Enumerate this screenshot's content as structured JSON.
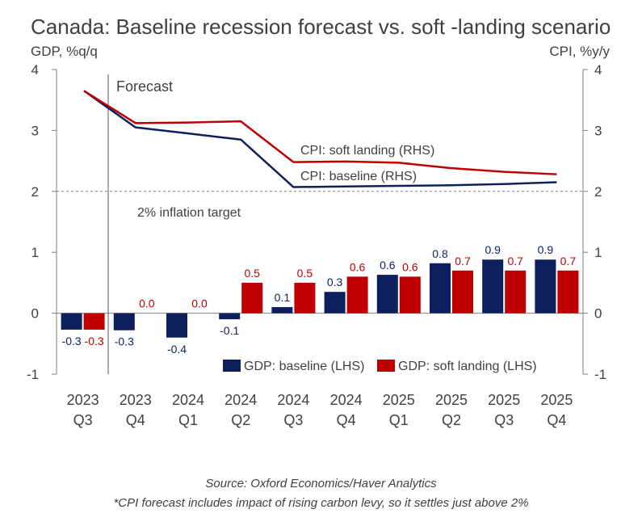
{
  "chart_data": {
    "type": "bar",
    "title": "Canada: Baseline recession forecast vs. soft -landing scenario",
    "ylabel": "GDP, %q/q",
    "y2label": "CPI, %y/y",
    "ylim": [
      -1,
      4
    ],
    "y2lim": [
      -1,
      4
    ],
    "yticks": [
      -1,
      0,
      1,
      2,
      3,
      4
    ],
    "grid": false,
    "categories": [
      {
        "year": "2023",
        "quarter": "Q3"
      },
      {
        "year": "2023",
        "quarter": "Q4"
      },
      {
        "year": "2024",
        "quarter": "Q1"
      },
      {
        "year": "2024",
        "quarter": "Q2"
      },
      {
        "year": "2024",
        "quarter": "Q3"
      },
      {
        "year": "2024",
        "quarter": "Q4"
      },
      {
        "year": "2025",
        "quarter": "Q1"
      },
      {
        "year": "2025",
        "quarter": "Q2"
      },
      {
        "year": "2025",
        "quarter": "Q3"
      },
      {
        "year": "2025",
        "quarter": "Q4"
      }
    ],
    "series": [
      {
        "name": "GDP: baseline (LHS)",
        "type": "bar",
        "axis": "left",
        "color": "#0d1f5c",
        "values": [
          -0.3,
          -0.3,
          -0.4,
          -0.1,
          0.1,
          0.3,
          0.6,
          0.8,
          0.9,
          0.9
        ],
        "labels": [
          "-0.3",
          "-0.3",
          "-0.4",
          "-0.1",
          "0.1",
          "0.3",
          "0.6",
          "0.8",
          "0.9",
          "0.9"
        ],
        "plotted": [
          -0.27,
          -0.28,
          -0.4,
          -0.1,
          0.1,
          0.35,
          0.63,
          0.82,
          0.88,
          0.88
        ]
      },
      {
        "name": "GDP: soft landing (LHS)",
        "type": "bar",
        "axis": "left",
        "color": "#c00000",
        "values": [
          -0.3,
          0.0,
          0.0,
          0.5,
          0.5,
          0.6,
          0.6,
          0.7,
          0.7,
          0.7
        ],
        "labels": [
          "-0.3",
          "0.0",
          "0.0",
          "0.5",
          "0.5",
          "0.6",
          "0.6",
          "0.7",
          "0.7",
          "0.7"
        ],
        "plotted": [
          -0.27,
          0.0,
          0.0,
          0.5,
          0.5,
          0.6,
          0.6,
          0.7,
          0.7,
          0.7
        ]
      },
      {
        "name": "CPI: baseline (RHS)",
        "type": "line",
        "axis": "right",
        "color": "#0d1f5c",
        "values": [
          3.65,
          3.05,
          2.95,
          2.85,
          2.07,
          2.08,
          2.09,
          2.1,
          2.12,
          2.15
        ]
      },
      {
        "name": "CPI: soft landing (RHS)",
        "type": "line",
        "axis": "right",
        "color": "#c00000",
        "values": [
          3.65,
          3.12,
          3.13,
          3.15,
          2.48,
          2.49,
          2.47,
          2.38,
          2.32,
          2.28
        ]
      }
    ],
    "annotations": {
      "forecast": "Forecast",
      "inflation_target": "2% inflation target",
      "inflation_target_value": 2
    },
    "legend_position": "bottom-right"
  },
  "footer": {
    "source": "Source: Oxford Economics/Haver Analytics",
    "note": "*CPI forecast includes impact of rising carbon levy, so it settles just above 2%"
  }
}
